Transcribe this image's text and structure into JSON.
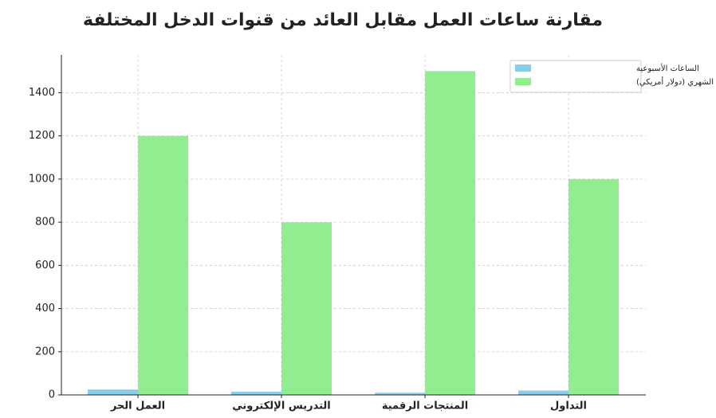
{
  "chart_data": {
    "type": "bar",
    "title": "مقارنة ساعات العمل مقابل العائد من قنوات الدخل المختلفة",
    "categories": [
      "العمل الحر",
      "التدريس الإلكتروني",
      "المنتجات الرقمية",
      "التداول"
    ],
    "series": [
      {
        "name": "الساعات الأسبوعية",
        "color": "#87ceeb",
        "values": [
          25,
          15,
          10,
          20
        ]
      },
      {
        "name": "العائد الشهري (دولار أمريكي)",
        "color": "#90ee90",
        "values": [
          1200,
          800,
          1500,
          1000
        ]
      }
    ],
    "ylim": [
      0,
      1575
    ],
    "yticks": [
      0,
      200,
      400,
      600,
      800,
      1000,
      1200,
      1400
    ],
    "grid": true,
    "legend": "upper right"
  }
}
